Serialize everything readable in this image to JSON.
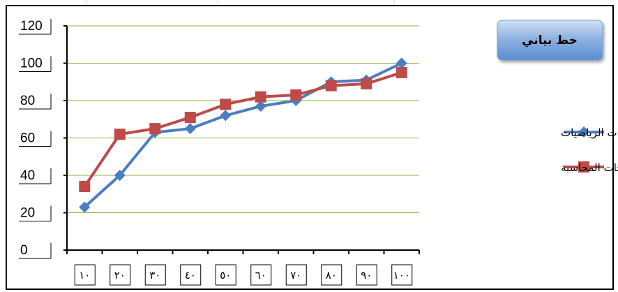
{
  "chart_data": {
    "type": "line",
    "title": "خط بياني",
    "categories": [
      "١٠",
      "٢٠",
      "٣٠",
      "٤٠",
      "٥٠",
      "٦٠",
      "٧٠",
      "٨٠",
      "٩٠",
      "١٠٠"
    ],
    "series": [
      {
        "name": "درجات الرياضيات",
        "color": "#4a7ebf",
        "marker": "diamond",
        "values": [
          23,
          40,
          63,
          65,
          72,
          77,
          80,
          90,
          91,
          100
        ]
      },
      {
        "name": "درجات المحاسبة",
        "color": "#be4b48",
        "marker": "square",
        "values": [
          34,
          62,
          65,
          71,
          78,
          82,
          83,
          88,
          89,
          95
        ]
      }
    ],
    "yticks": [
      0,
      20,
      40,
      60,
      80,
      100,
      120
    ],
    "ylim": [
      0,
      120
    ],
    "grid": true,
    "legend_position": "right"
  }
}
